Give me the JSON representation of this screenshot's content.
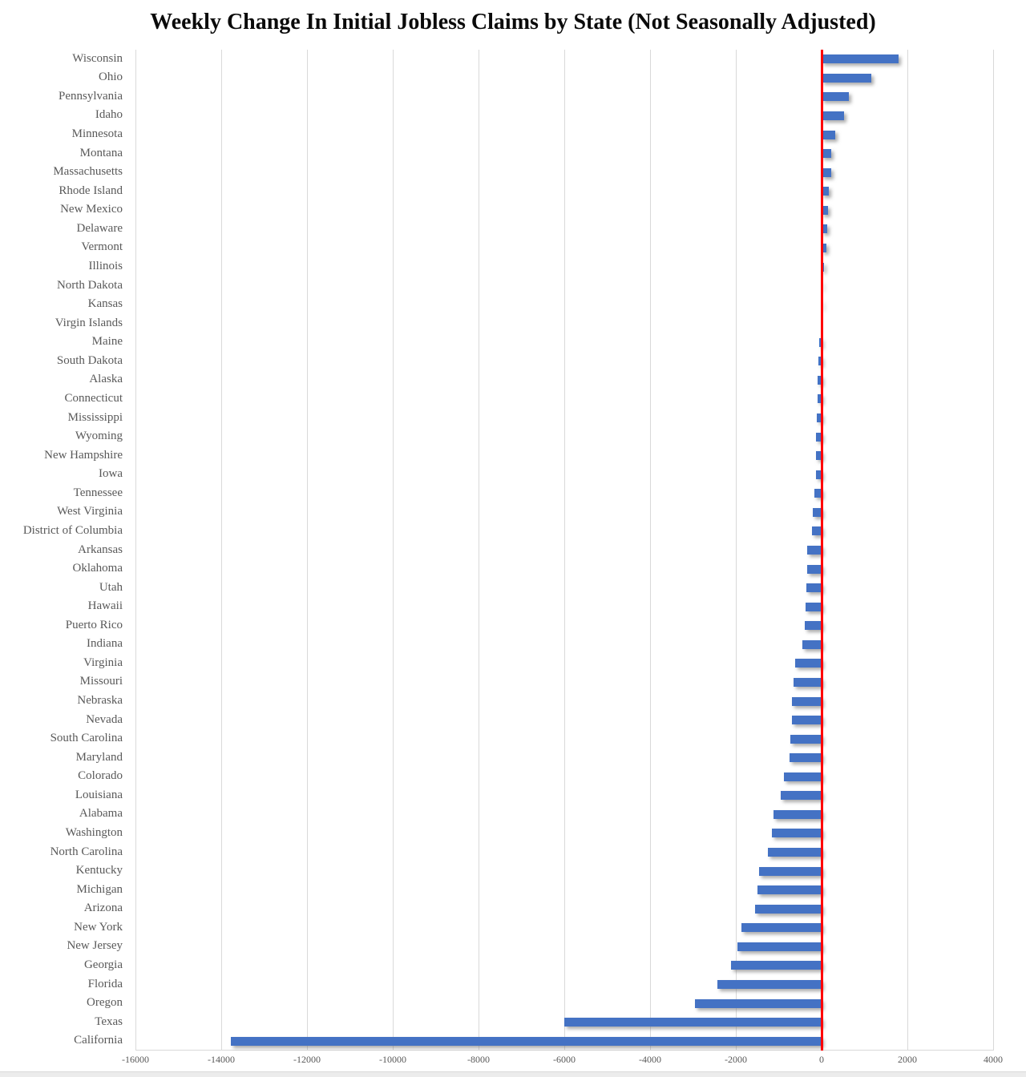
{
  "title": "Weekly Change In Initial Jobless Claims by State (Not Seasonally Adjusted)",
  "chart_data": {
    "type": "bar",
    "orientation": "horizontal",
    "title": "Weekly Change In Initial Jobless Claims by State (Not Seasonally Adjusted)",
    "xlabel": "",
    "ylabel": "",
    "xlim": [
      -16000,
      4000
    ],
    "x_ticks": [
      -16000,
      -14000,
      -12000,
      -10000,
      -8000,
      -6000,
      -4000,
      -2000,
      0,
      2000,
      4000
    ],
    "x_tick_labels": [
      "-16000",
      "-14000",
      "-12000",
      "-10000",
      "-8000",
      "-6000",
      "-4000",
      "-2000",
      "0",
      "2000",
      "4000"
    ],
    "grid": true,
    "legend": "none",
    "categories": [
      "Wisconsin",
      "Ohio",
      "Pennsylvania",
      "Idaho",
      "Minnesota",
      "Montana",
      "Massachusetts",
      "Rhode Island",
      "New Mexico",
      "Delaware",
      "Vermont",
      "Illinois",
      "North Dakota",
      "Kansas",
      "Virgin Islands",
      "Maine",
      "South Dakota",
      "Alaska",
      "Connecticut",
      "Mississippi",
      "Wyoming",
      "New Hampshire",
      "Iowa",
      "Tennessee",
      "West Virginia",
      "District of Columbia",
      "Arkansas",
      "Oklahoma",
      "Utah",
      "Hawaii",
      "Puerto Rico",
      "Indiana",
      "Virginia",
      "Missouri",
      "Nebraska",
      "Nevada",
      "South Carolina",
      "Maryland",
      "Colorado",
      "Louisiana",
      "Alabama",
      "Washington",
      "North Carolina",
      "Kentucky",
      "Michigan",
      "Arizona",
      "New York",
      "New Jersey",
      "Georgia",
      "Florida",
      "Oregon",
      "Texas",
      "California"
    ],
    "values": [
      1800,
      1150,
      640,
      530,
      310,
      230,
      215,
      165,
      150,
      130,
      115,
      60,
      20,
      10,
      0,
      -60,
      -75,
      -90,
      -100,
      -110,
      -125,
      -130,
      -140,
      -165,
      -200,
      -215,
      -340,
      -345,
      -355,
      -370,
      -390,
      -450,
      -620,
      -655,
      -690,
      -700,
      -730,
      -745,
      -880,
      -950,
      -1130,
      -1160,
      -1250,
      -1460,
      -1490,
      -1560,
      -1860,
      -1970,
      -2120,
      -2430,
      -2950,
      -6000,
      -13770
    ],
    "colors": {
      "bar": "#4472C4",
      "zero_line": "#FF0000",
      "gridline": "#D9D9D9",
      "axis_text": "#595959",
      "title_text": "#0a0a0a"
    }
  }
}
